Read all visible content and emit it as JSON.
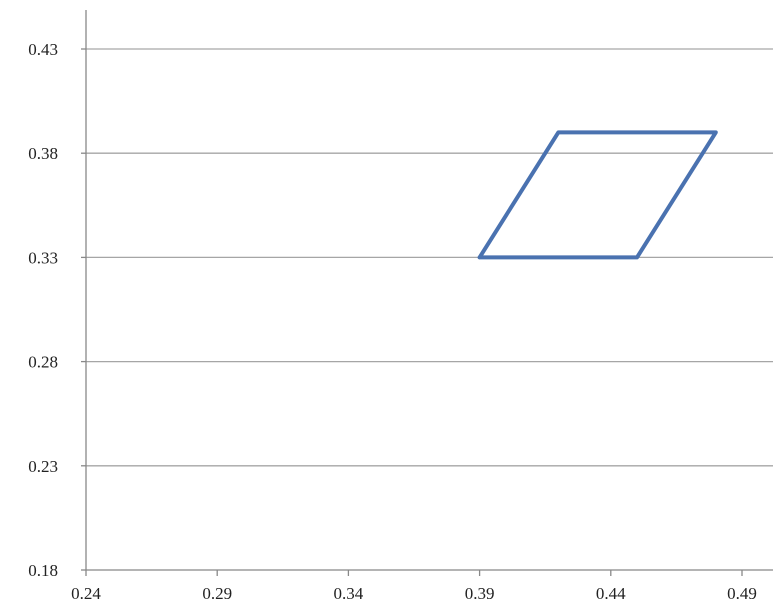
{
  "chart_data": {
    "type": "line",
    "title": "",
    "xlabel": "",
    "ylabel": "",
    "xlim": [
      0.24,
      0.49
    ],
    "ylim": [
      0.18,
      0.43
    ],
    "x_ticks": [
      "0.24",
      "0.29",
      "0.34",
      "0.39",
      "0.44",
      "0.49"
    ],
    "y_ticks": [
      "0.18",
      "0.23",
      "0.28",
      "0.33",
      "0.38",
      "0.43"
    ],
    "grid": "horizontal",
    "legend": "none",
    "series": [
      {
        "color": "#4a72b0",
        "points": [
          {
            "x": 0.39,
            "y": 0.33
          },
          {
            "x": 0.42,
            "y": 0.39
          },
          {
            "x": 0.48,
            "y": 0.39
          },
          {
            "x": 0.45,
            "y": 0.33
          },
          {
            "x": 0.39,
            "y": 0.33
          }
        ]
      }
    ]
  }
}
